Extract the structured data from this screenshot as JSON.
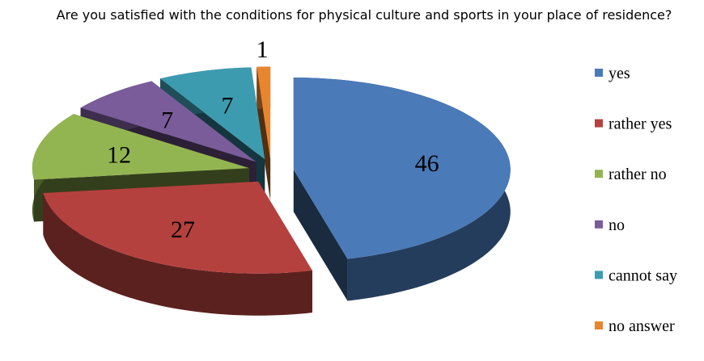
{
  "chart_data": {
    "type": "pie3d",
    "title": "Are you satisfied with the conditions for physical culture and sports in your place of residence?",
    "categories": [
      "yes",
      "rather yes",
      "rather no",
      "no",
      "cannot say",
      "no answer"
    ],
    "values": [
      46,
      27,
      12,
      7,
      7,
      1
    ],
    "colors": [
      "#4a7ab8",
      "#b5413e",
      "#93b551",
      "#7a5c9a",
      "#3d9bb0",
      "#e8852f"
    ],
    "legend": "right"
  }
}
